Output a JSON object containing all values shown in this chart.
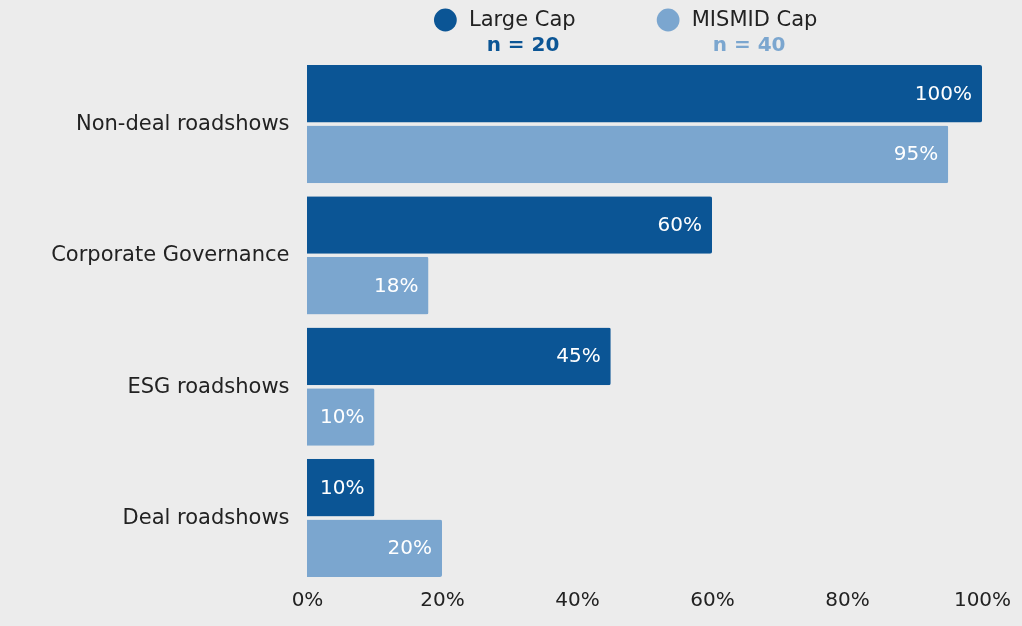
{
  "chart_data": {
    "type": "bar",
    "orientation": "horizontal",
    "categories": [
      "Non-deal roadshows",
      "Corporate Governance",
      "ESG roadshows",
      "Deal roadshows"
    ],
    "series": [
      {
        "name": "Large Cap",
        "color": "#0b5595",
        "values": [
          100,
          60,
          45,
          10
        ],
        "value_labels": [
          "100%",
          "60%",
          "45%",
          "10%"
        ]
      },
      {
        "name": "MISMID Cap",
        "color": "#7ba6cf",
        "values": [
          95,
          18,
          10,
          20
        ],
        "value_labels": [
          "95%",
          "18%",
          "10%",
          "20%"
        ]
      }
    ],
    "xlim": [
      0,
      100
    ],
    "xticks": [
      {
        "value": 0,
        "label": "0%"
      },
      {
        "value": 20,
        "label": "20%"
      },
      {
        "value": 40,
        "label": "40%"
      },
      {
        "value": 60,
        "label": "60%"
      },
      {
        "value": 80,
        "label": "80%"
      },
      {
        "value": 100,
        "label": "100%"
      }
    ],
    "legend": "top",
    "grid": false,
    "annotations": [
      "n = 20",
      "n = 40"
    ]
  }
}
